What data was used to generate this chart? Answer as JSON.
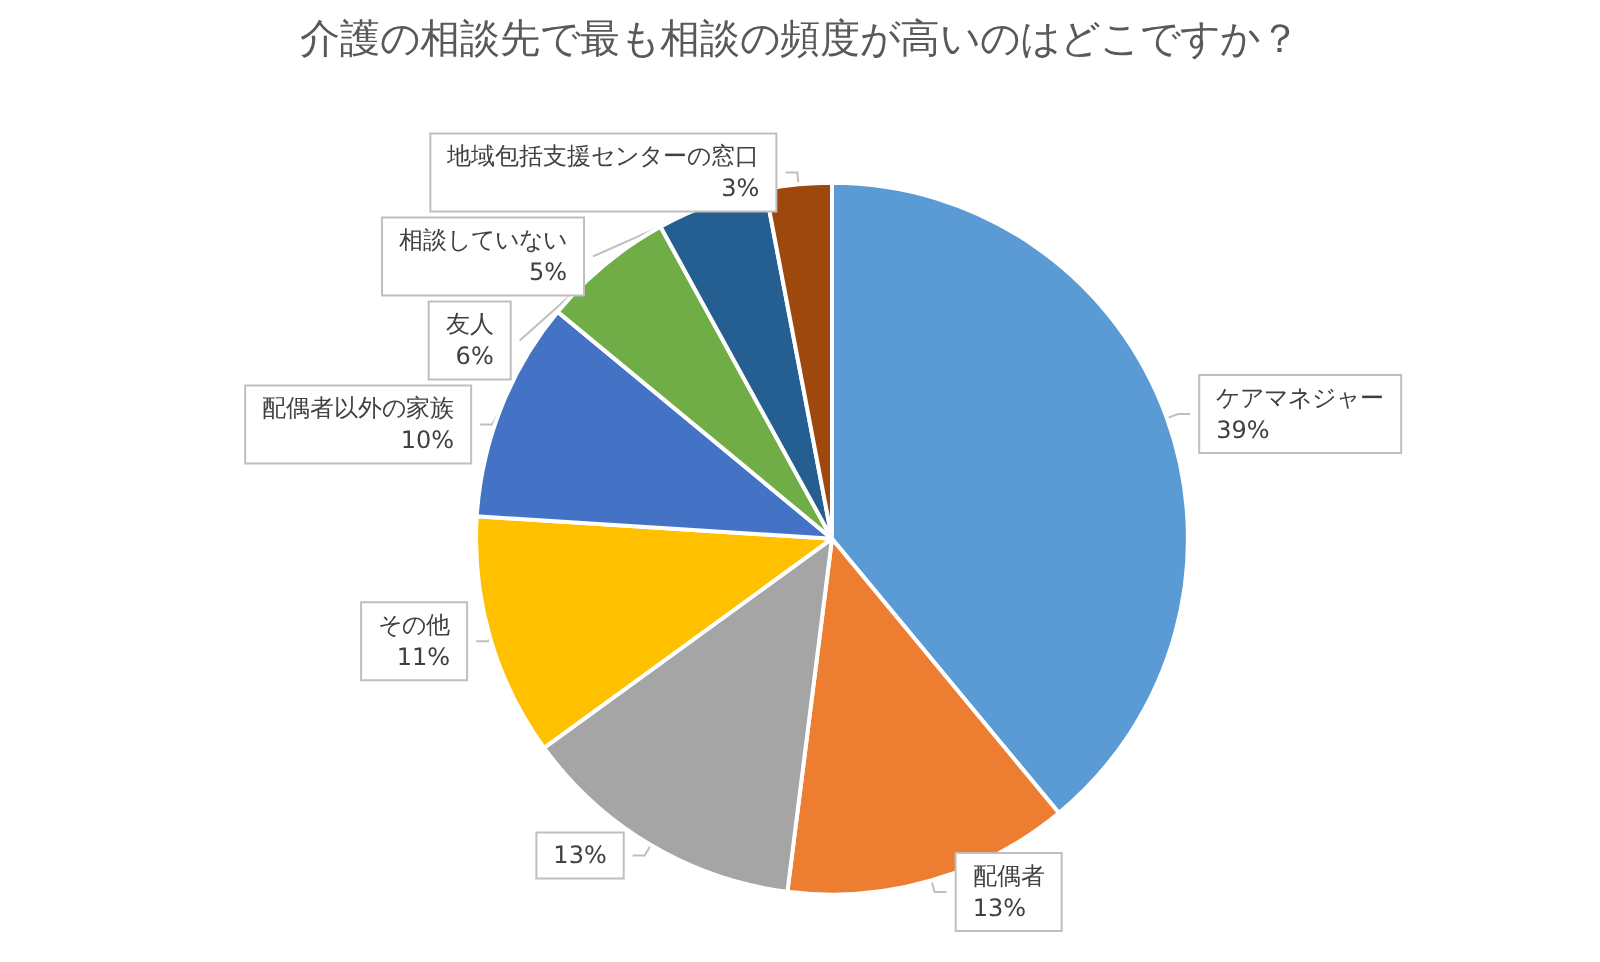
{
  "chart_data": {
    "type": "pie",
    "title": "介護の相談先で最も相談の頻度が高いのはどこですか？",
    "categories": [
      "ケアマネジャー",
      "配偶者",
      null,
      "その他",
      "配偶者以外の家族",
      "友人",
      "相談していない",
      "地域包括支援センターの窓口"
    ],
    "values": [
      39,
      13,
      13,
      11,
      10,
      6,
      5,
      3
    ],
    "value_labels": [
      "39%",
      "13%",
      "13%",
      "11%",
      "10%",
      "6%",
      "5%",
      "3%"
    ],
    "colors": [
      "#5b9bd5",
      "#ed7d31",
      "#a5a5a5",
      "#ffc000",
      "#4472c4",
      "#70ad47",
      "#255e91",
      "#9e480e"
    ],
    "legend": false
  }
}
